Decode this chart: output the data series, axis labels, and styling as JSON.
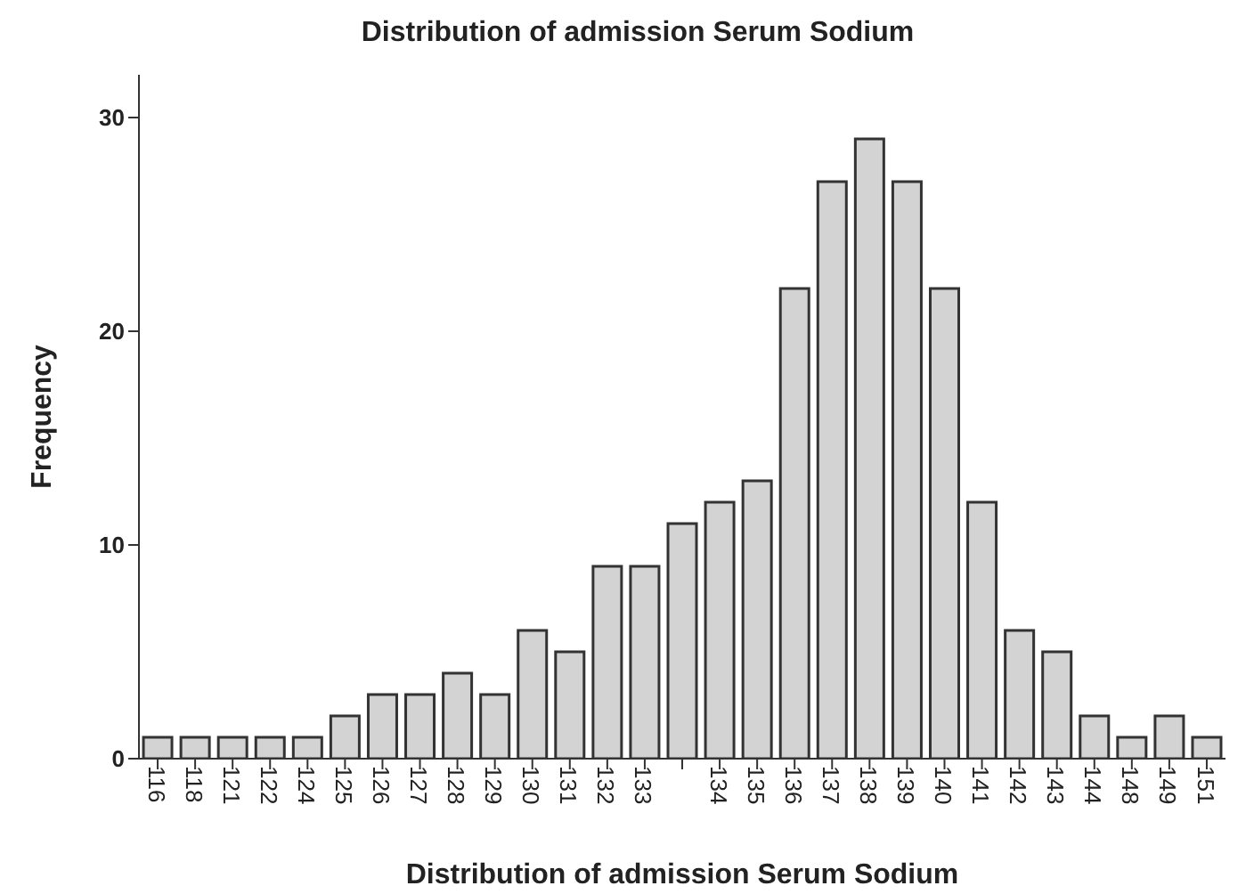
{
  "chart_data": {
    "type": "bar",
    "title": "Distribution of admission Serum Sodium",
    "xlabel": "Distribution of admission Serum Sodium",
    "ylabel": "Frequency",
    "categories": [
      "116",
      "118",
      "121",
      "122",
      "124",
      "125",
      "126",
      "127",
      "128",
      "129",
      "130",
      "131",
      "132",
      "133",
      null,
      "134",
      "135",
      "136",
      "137",
      "138",
      "139",
      "140",
      "141",
      "142",
      "143",
      "144",
      "148",
      "149",
      "151"
    ],
    "values": [
      1,
      1,
      1,
      1,
      1,
      2,
      3,
      3,
      4,
      3,
      6,
      5,
      9,
      9,
      11,
      12,
      13,
      22,
      27,
      29,
      27,
      22,
      12,
      6,
      5,
      2,
      1,
      2,
      1
    ],
    "color": "#d3d3d3",
    "ylim": [
      0,
      32
    ],
    "yticks": [
      0,
      10,
      20,
      30
    ],
    "grid": false
  }
}
